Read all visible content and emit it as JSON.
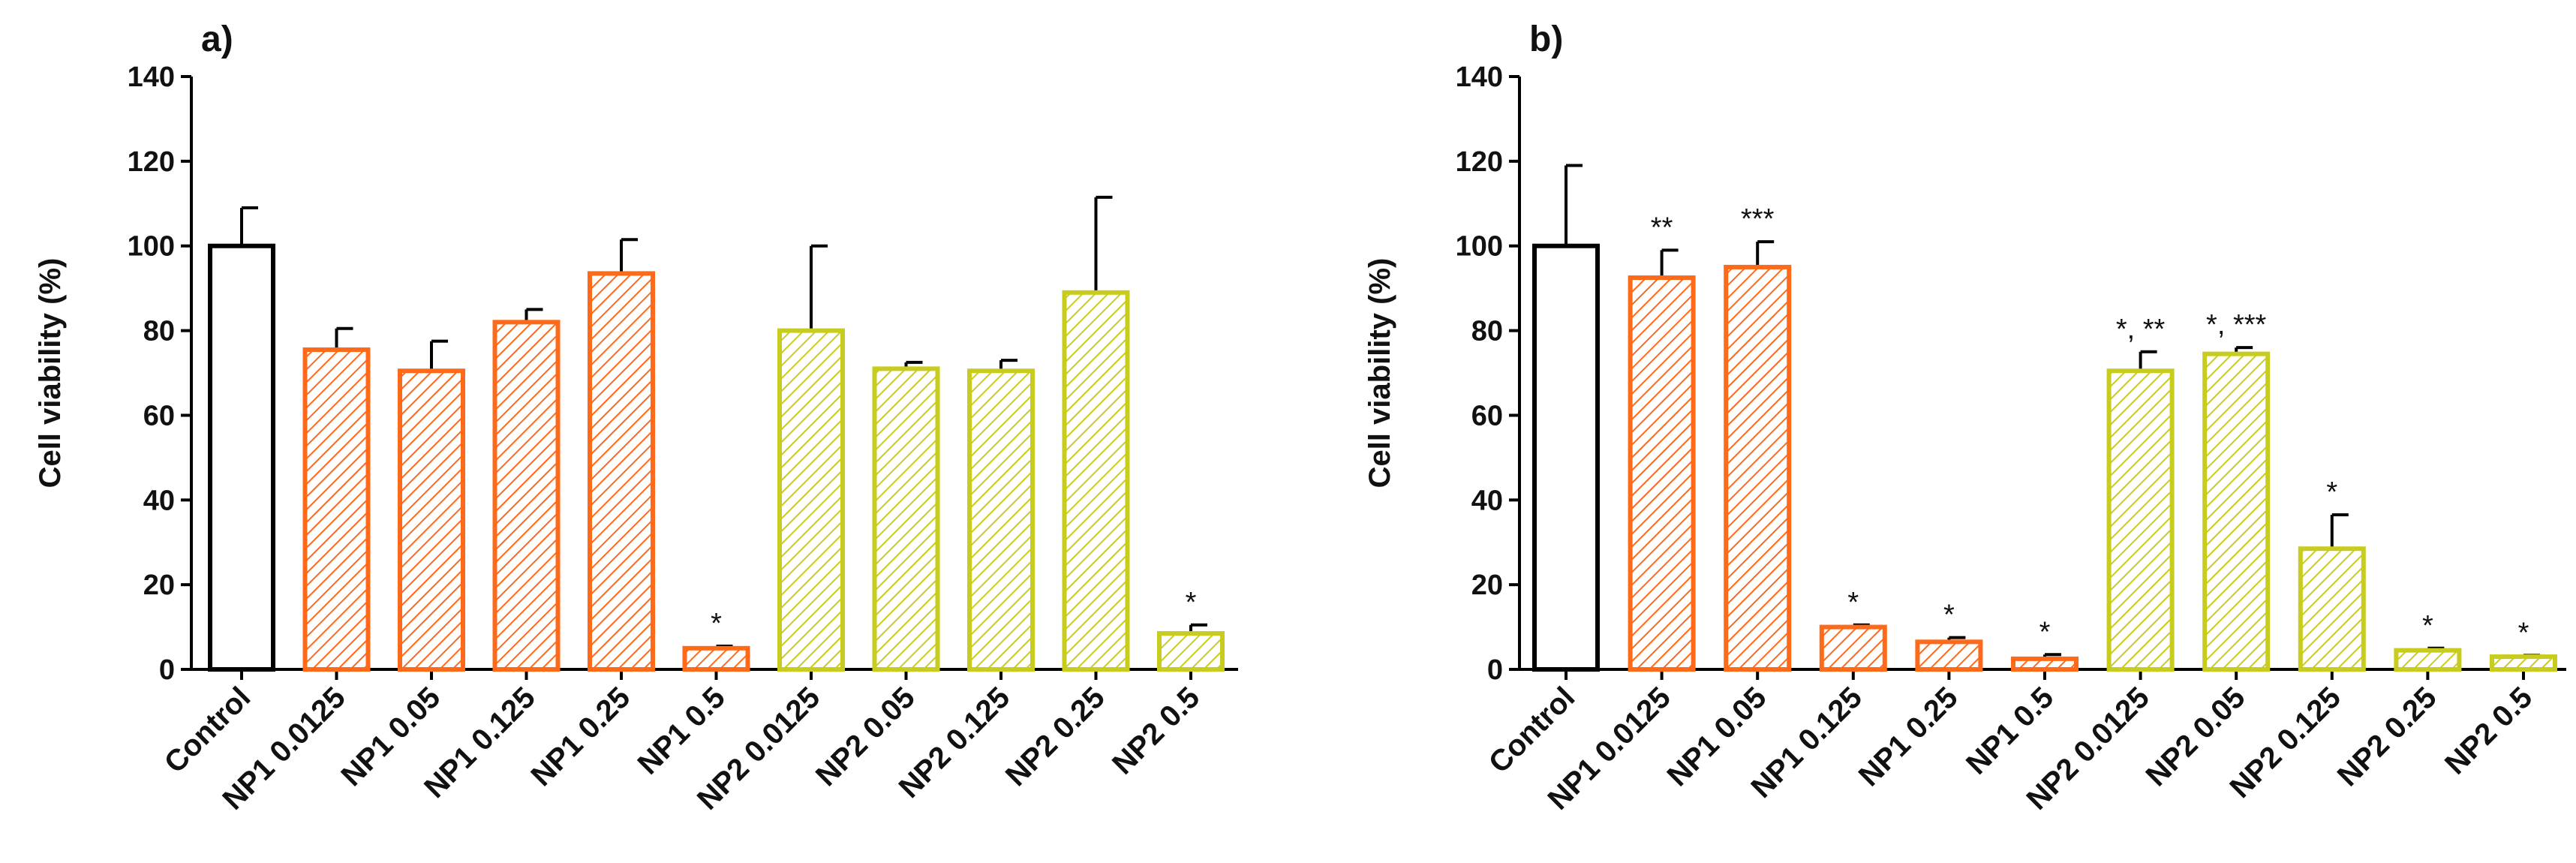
{
  "chart_data": [
    {
      "type": "bar",
      "panel_label": "a)",
      "ylabel": "Cell viability (%)",
      "xlabel": "",
      "ylim": [
        0,
        140
      ],
      "yticks": [
        "0",
        "20",
        "40",
        "60",
        "80",
        "100",
        "120",
        "140"
      ],
      "grid": false,
      "categories": [
        "Control",
        "NP1 0.0125",
        "NP1 0.05",
        "NP1 0.125",
        "NP1 0.25",
        "NP1 0.5",
        "NP2 0.0125",
        "NP2 0.05",
        "NP2 0.125",
        "NP2 0.25",
        "NP2 0.5"
      ],
      "values": [
        100,
        75.5,
        70.5,
        82,
        93.5,
        5,
        80,
        71,
        70.5,
        89,
        8.5
      ],
      "errors": [
        9,
        5,
        7,
        3,
        8,
        0.5,
        20,
        1.5,
        2.5,
        22.5,
        2
      ],
      "groups": [
        "control",
        "np1",
        "np1",
        "np1",
        "np1",
        "np1",
        "np2",
        "np2",
        "np2",
        "np2",
        "np2"
      ],
      "annotations": [
        "",
        "",
        "",
        "",
        "",
        "*",
        "",
        "",
        "",
        "",
        "*"
      ]
    },
    {
      "type": "bar",
      "panel_label": "b)",
      "ylabel": "Cell viability (%)",
      "xlabel": "",
      "ylim": [
        0,
        140
      ],
      "yticks": [
        "0",
        "20",
        "40",
        "60",
        "80",
        "100",
        "120",
        "140"
      ],
      "grid": false,
      "categories": [
        "Control",
        "NP1 0.0125",
        "NP1 0.05",
        "NP1 0.125",
        "NP1 0.25",
        "NP1 0.5",
        "NP2 0.0125",
        "NP2 0.05",
        "NP2 0.125",
        "NP2 0.25",
        "NP2 0.5"
      ],
      "values": [
        100,
        92.5,
        95,
        10,
        6.5,
        2.5,
        70.5,
        74.5,
        28.5,
        4.5,
        3
      ],
      "errors": [
        19,
        6.5,
        6,
        0.5,
        1,
        1,
        4.5,
        1.5,
        8,
        0.5,
        0.3
      ],
      "groups": [
        "control",
        "np1",
        "np1",
        "np1",
        "np1",
        "np1",
        "np2",
        "np2",
        "np2",
        "np2",
        "np2"
      ],
      "annotations": [
        "",
        "**",
        "***",
        "*",
        "*",
        "*",
        "*, **",
        "*, ***",
        "*",
        "*",
        "*"
      ]
    }
  ],
  "colors": {
    "control": "#000000",
    "np1": "#ff6a1a",
    "np2": "#c8cc1e"
  }
}
